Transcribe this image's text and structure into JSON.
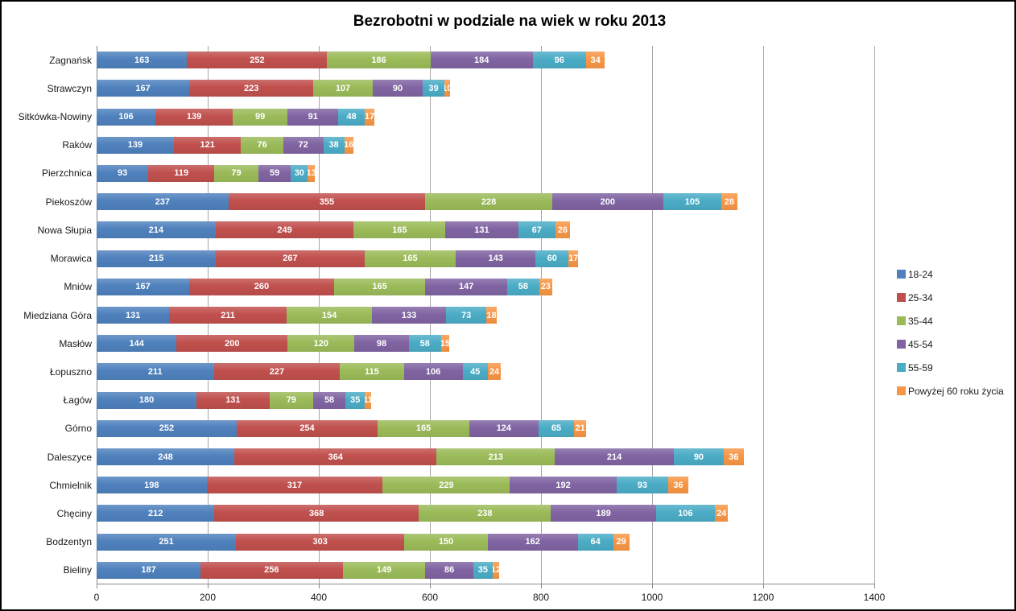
{
  "chart_data": {
    "type": "bar",
    "orientation": "horizontal",
    "stacked": true,
    "title": "Bezrobotni w podziale na wiek w roku 2013",
    "categories": [
      "Zagnańsk",
      "Strawczyn",
      "Sitkówka-Nowiny",
      "Raków",
      "Pierzchnica",
      "Piekoszów",
      "Nowa Słupia",
      "Morawica",
      "Mniów",
      "Miedziana Góra",
      "Masłów",
      "Łopuszno",
      "Łagów",
      "Górno",
      "Daleszyce",
      "Chmielnik",
      "Chęciny",
      "Bodzentyn",
      "Bieliny"
    ],
    "series": [
      {
        "name": "18-24",
        "color": "#4F81BD",
        "values": [
          163,
          167,
          106,
          139,
          93,
          237,
          214,
          215,
          167,
          131,
          144,
          211,
          180,
          252,
          248,
          198,
          212,
          251,
          187
        ]
      },
      {
        "name": "25-34",
        "color": "#C0504D",
        "values": [
          252,
          223,
          139,
          121,
          119,
          355,
          249,
          267,
          260,
          211,
          200,
          227,
          131,
          254,
          364,
          317,
          368,
          303,
          256
        ]
      },
      {
        "name": "35-44",
        "color": "#9BBB59",
        "values": [
          186,
          107,
          99,
          76,
          79,
          228,
          165,
          165,
          165,
          154,
          120,
          115,
          79,
          165,
          213,
          229,
          238,
          150,
          149
        ]
      },
      {
        "name": "45-54",
        "color": "#8064A2",
        "values": [
          184,
          90,
          91,
          72,
          59,
          200,
          131,
          143,
          147,
          133,
          98,
          106,
          58,
          124,
          214,
          192,
          189,
          162,
          86
        ]
      },
      {
        "name": "55-59",
        "color": "#4BACC6",
        "values": [
          96,
          39,
          48,
          38,
          30,
          105,
          67,
          60,
          58,
          73,
          58,
          45,
          35,
          65,
          90,
          93,
          106,
          64,
          35
        ]
      },
      {
        "name": "Powyżej 60 roku życia",
        "color": "#F79646",
        "values": [
          34,
          10,
          17,
          16,
          13,
          28,
          26,
          17,
          23,
          18,
          15,
          24,
          11,
          21,
          36,
          36,
          24,
          29,
          12
        ]
      }
    ],
    "xlim": [
      0,
      1400
    ],
    "x_ticks": [
      0,
      200,
      400,
      600,
      800,
      1000,
      1200,
      1400
    ],
    "grid": "vertical",
    "legend_position": "right",
    "value_labels": "inside",
    "value_label_color": "#ffffff",
    "gridline_color": "#a6a6a6",
    "axis_color": "#898989",
    "background_color": "#ffffff"
  }
}
